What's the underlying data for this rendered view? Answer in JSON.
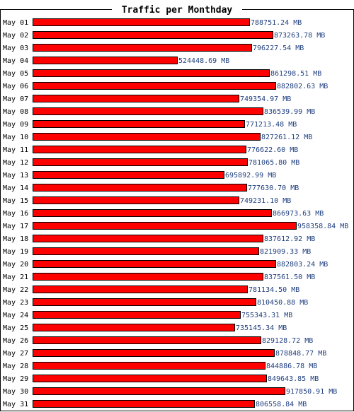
{
  "colors": {
    "bar": "#ff0000",
    "bar_border": "#000000",
    "value_text": "#1f3f7f",
    "label_text": "#000000",
    "background": "#ffffff"
  },
  "chart_data": {
    "type": "bar",
    "orientation": "horizontal",
    "title": "Traffic per Monthday",
    "unit": "MB",
    "categories": [
      "May 01",
      "May 02",
      "May 03",
      "May 04",
      "May 05",
      "May 06",
      "May 07",
      "May 08",
      "May 09",
      "May 10",
      "May 11",
      "May 12",
      "May 13",
      "May 14",
      "May 15",
      "May 16",
      "May 17",
      "May 18",
      "May 19",
      "May 20",
      "May 21",
      "May 22",
      "May 23",
      "May 24",
      "May 25",
      "May 26",
      "May 27",
      "May 28",
      "May 29",
      "May 30",
      "May 31"
    ],
    "values": [
      788751.24,
      873263.78,
      796227.54,
      524448.69,
      861298.51,
      882802.63,
      749354.97,
      836539.99,
      771213.48,
      827261.12,
      776622.6,
      781065.8,
      695892.99,
      777630.7,
      749231.1,
      866973.63,
      958358.84,
      837612.92,
      821909.33,
      882803.24,
      837561.5,
      781134.5,
      810450.88,
      755343.31,
      735145.34,
      829128.72,
      878848.77,
      844886.78,
      849643.85,
      917850.91,
      806558.84
    ],
    "value_labels": [
      "788751.24 MB",
      "873263.78 MB",
      "796227.54 MB",
      "524448.69 MB",
      "861298.51 MB",
      "882802.63 MB",
      "749354.97 MB",
      "836539.99 MB",
      "771213.48 MB",
      "827261.12 MB",
      "776622.60 MB",
      "781065.80 MB",
      "695892.99 MB",
      "777630.70 MB",
      "749231.10 MB",
      "866973.63 MB",
      "958358.84 MB",
      "837612.92 MB",
      "821909.33 MB",
      "882803.24 MB",
      "837561.50 MB",
      "781134.50 MB",
      "810450.88 MB",
      "755343.31 MB",
      "735145.34 MB",
      "829128.72 MB",
      "878848.77 MB",
      "844886.78 MB",
      "849643.85 MB",
      "917850.91 MB",
      "806558.84 MB"
    ],
    "xlim": [
      0,
      958358.84
    ],
    "grid": false,
    "legend": "none"
  }
}
